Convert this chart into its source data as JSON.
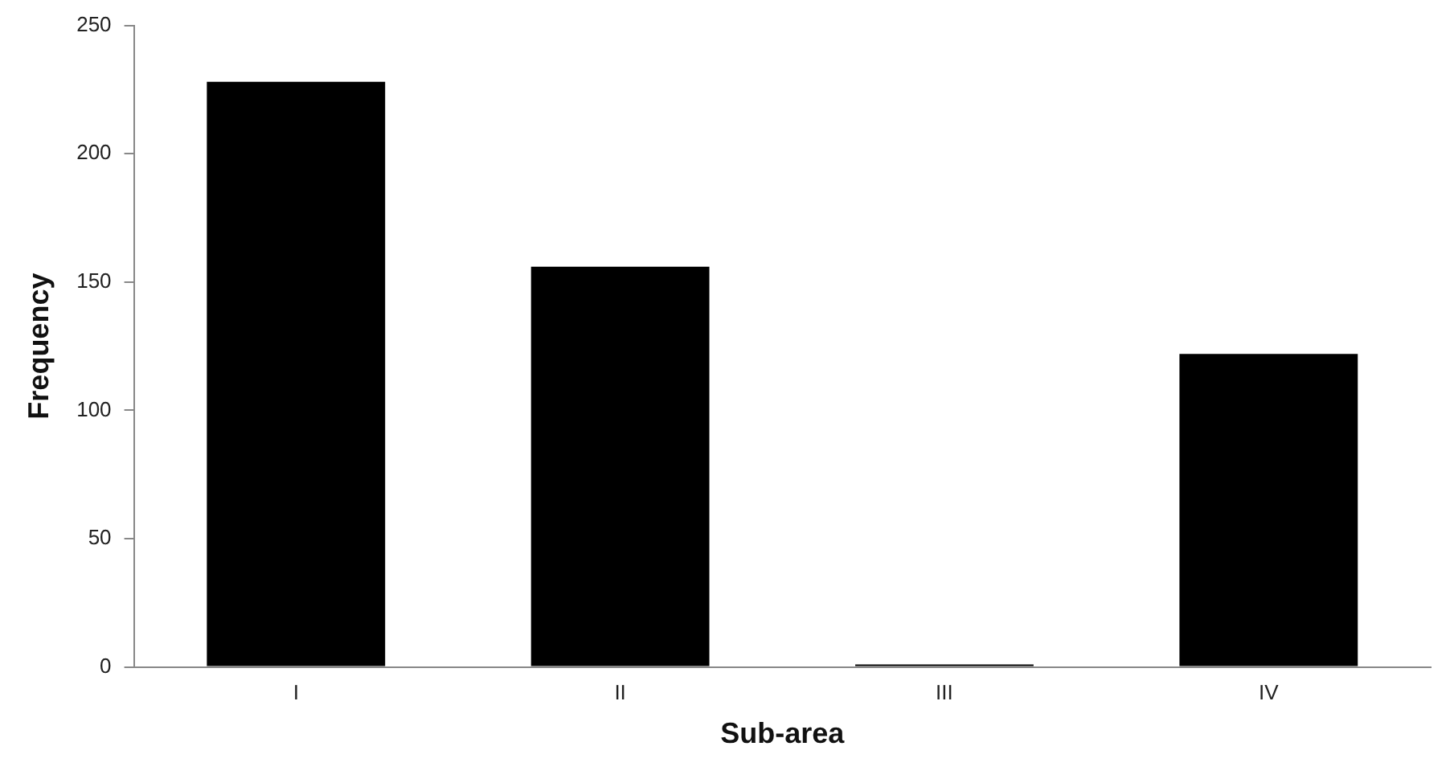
{
  "chart_data": {
    "type": "bar",
    "xlabel": "Sub-area",
    "ylabel": "Frequency",
    "categories": [
      "I",
      "II",
      "III",
      "IV"
    ],
    "values": [
      228,
      156,
      1,
      122
    ],
    "color": "#000000",
    "ylim": [
      0,
      250
    ],
    "yticks": [
      0,
      50,
      100,
      150,
      200,
      250
    ],
    "grid": false,
    "legend": false
  }
}
